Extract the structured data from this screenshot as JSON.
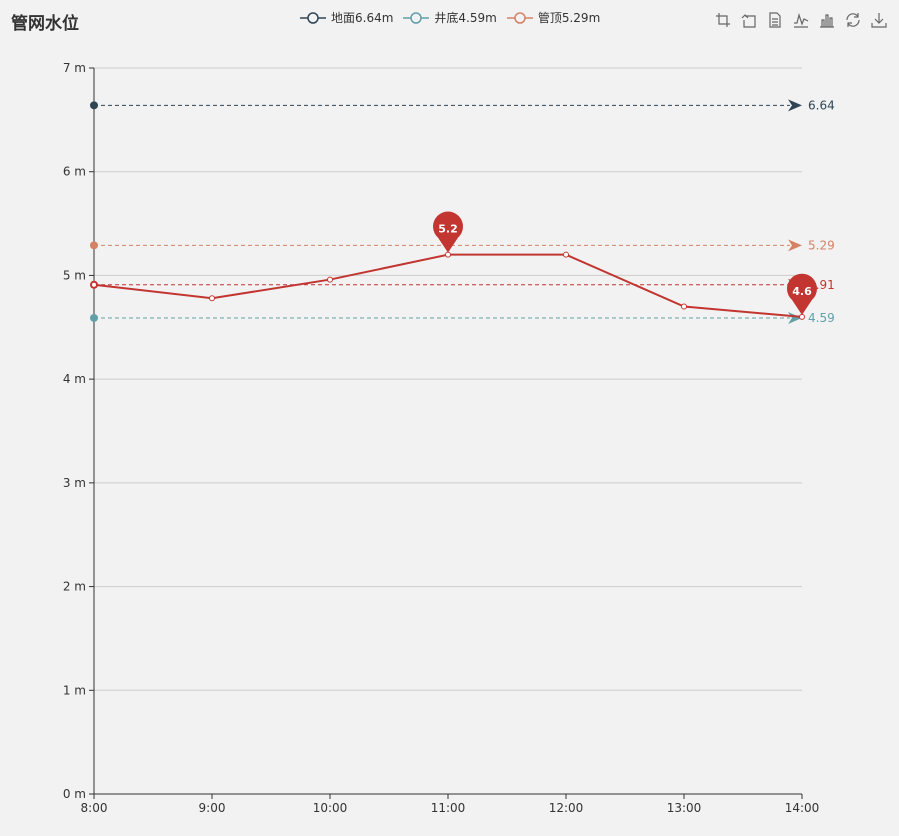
{
  "title": "管网水位",
  "legend": [
    {
      "name": "地面6.64m",
      "color": "#2f4554"
    },
    {
      "name": "井底4.59m",
      "color": "#61a0a8"
    },
    {
      "name": "管顶5.29m",
      "color": "#d48265"
    }
  ],
  "toolbox": [
    "zoom-icon",
    "zoom-reset-icon",
    "data-view-icon",
    "line-chart-icon",
    "bar-chart-icon",
    "restore-icon",
    "download-icon"
  ],
  "chart_data": {
    "type": "line",
    "categories": [
      "8:00",
      "9:00",
      "10:00",
      "11:00",
      "12:00",
      "13:00",
      "14:00"
    ],
    "series": [
      {
        "values": [
          4.91,
          4.78,
          4.96,
          5.2,
          5.2,
          4.7,
          4.6
        ],
        "color": "#c23531"
      }
    ],
    "reference_lines": [
      {
        "value": 6.64,
        "label": "6.64",
        "color": "#2f4554"
      },
      {
        "value": 5.29,
        "label": "5.29",
        "color": "#d48265"
      },
      {
        "value": 4.91,
        "label": "4.91",
        "color": "#c23531"
      },
      {
        "value": 4.59,
        "label": "4.59",
        "color": "#61a0a8"
      }
    ],
    "mark_points": [
      {
        "category": "11:00",
        "value": 5.2,
        "label": "5.2"
      },
      {
        "category": "14:00",
        "value": 4.6,
        "label": "4.6"
      }
    ],
    "yticks": [
      "0 m",
      "1 m",
      "2 m",
      "3 m",
      "4 m",
      "5 m",
      "6 m",
      "7 m"
    ],
    "ylim": [
      0,
      7
    ],
    "grid": true
  }
}
